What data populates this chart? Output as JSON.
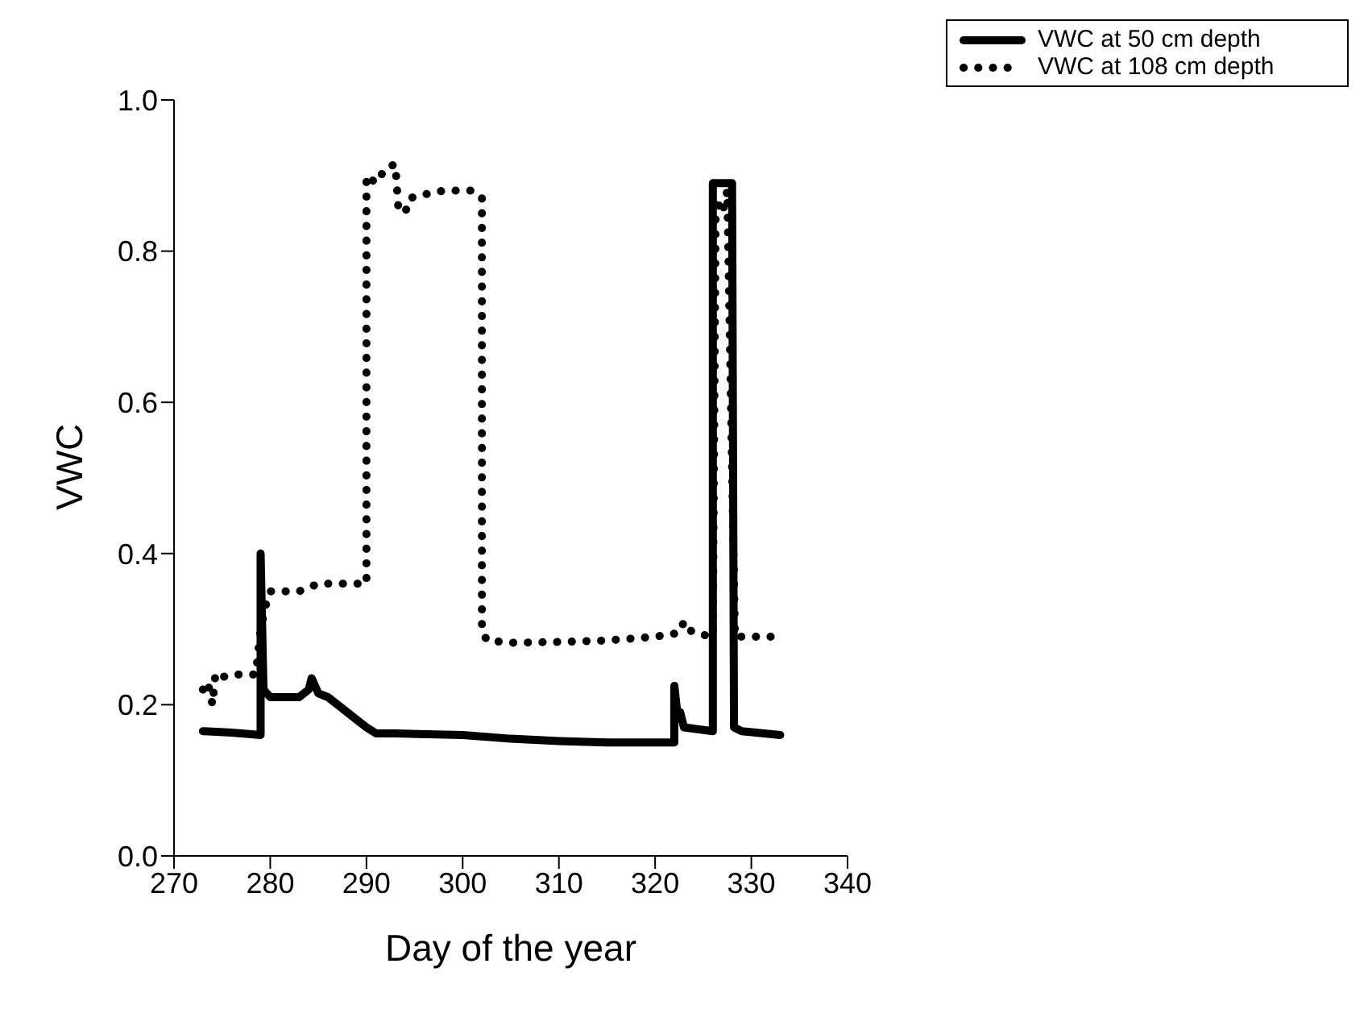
{
  "chart_data": {
    "type": "line",
    "xlabel": "Day of the year",
    "ylabel": "VWC",
    "xlim": [
      270,
      340
    ],
    "xticks": [
      270,
      280,
      290,
      300,
      310,
      320,
      330,
      340
    ],
    "ylim": [
      0,
      1
    ],
    "yticks": [
      {
        "value": 0,
        "label": "0.0"
      },
      {
        "value": 0.2,
        "label": "0.2"
      },
      {
        "value": 0.4,
        "label": "0.4"
      },
      {
        "value": 0.6,
        "label": "0.6"
      },
      {
        "value": 0.8,
        "label": "0.8"
      },
      {
        "value": 1,
        "label": "1.0"
      }
    ],
    "grid": false,
    "legend": "top right",
    "series": [
      {
        "name": "VWC at 50 cm depth",
        "color": "#000000",
        "line_style": "solid",
        "x": [
          273,
          276,
          279,
          279,
          279.3,
          280,
          283,
          284,
          284.3,
          285,
          286,
          288,
          290,
          291,
          293,
          300,
          305,
          310,
          315,
          322,
          322,
          322.3,
          322.6,
          323,
          326,
          326,
          328,
          328.2,
          329,
          333
        ],
        "values": [
          0.165,
          0.163,
          0.16,
          0.4,
          0.22,
          0.21,
          0.21,
          0.22,
          0.235,
          0.215,
          0.21,
          0.19,
          0.17,
          0.162,
          0.162,
          0.16,
          0.155,
          0.152,
          0.15,
          0.15,
          0.225,
          0.19,
          0.19,
          0.17,
          0.165,
          0.89,
          0.89,
          0.17,
          0.165,
          0.16
        ]
      },
      {
        "name": "VWC at 108 cm depth",
        "color": "#000000",
        "line_style": "dotted",
        "x": [
          273,
          273.5,
          274,
          274.3,
          274.6,
          276,
          278.5,
          279,
          279.5,
          280,
          283,
          285,
          290,
          290,
          291,
          292,
          293,
          293.3,
          294,
          294.5,
          296,
          298,
          301,
          302,
          302,
          302.5,
          305,
          310,
          315,
          320,
          322.5,
          323,
          323.5,
          324,
          326,
          326.3,
          327,
          327.5,
          328.3,
          330,
          333
        ],
        "values": [
          0.22,
          0.23,
          0.2,
          0.24,
          0.235,
          0.24,
          0.24,
          0.3,
          0.33,
          0.35,
          0.35,
          0.36,
          0.36,
          0.9,
          0.89,
          0.91,
          0.915,
          0.86,
          0.85,
          0.87,
          0.875,
          0.88,
          0.88,
          0.87,
          0.3,
          0.285,
          0.282,
          0.283,
          0.285,
          0.29,
          0.295,
          0.31,
          0.3,
          0.295,
          0.29,
          0.87,
          0.85,
          0.88,
          0.29,
          0.29,
          0.29
        ]
      }
    ]
  }
}
